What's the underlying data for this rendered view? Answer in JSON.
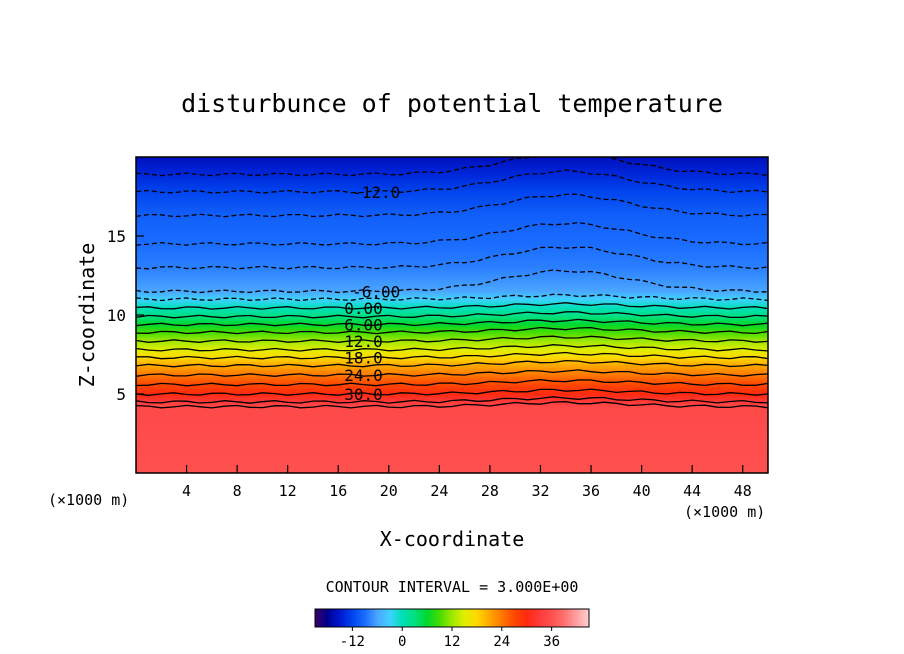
{
  "chart_data": {
    "type": "heatmap",
    "title": "disturbunce of potential temperature",
    "xlabel": "X-coordinate",
    "ylabel": "Z-coordinate",
    "x_unit_left": "(×1000 m)",
    "x_unit_right": "(×1000 m)",
    "xlim": [
      0,
      50
    ],
    "ylim": [
      0,
      20
    ],
    "x_ticks": [
      "4",
      "8",
      "12",
      "16",
      "20",
      "24",
      "28",
      "32",
      "36",
      "40",
      "44",
      "48"
    ],
    "y_ticks": [
      "5",
      "10",
      "15"
    ],
    "grid": false,
    "contour_interval_label": "CONTOUR INTERVAL = 3.000E+00",
    "colorbar": {
      "ticks": [
        "-12",
        "0",
        "12",
        "24",
        "36"
      ],
      "range": [
        -21,
        45
      ]
    },
    "contour_labels": [
      {
        "text": "-12.0",
        "value": -12,
        "x": 19,
        "z": 17.8
      },
      {
        "text": "-6.00",
        "value": -6,
        "x": 19,
        "z": 11.5
      },
      {
        "text": "0.00",
        "value": 0,
        "x": 18,
        "z": 10.45
      },
      {
        "text": "6.00",
        "value": 6,
        "x": 18,
        "z": 9.4
      },
      {
        "text": "12.0",
        "value": 12,
        "x": 18,
        "z": 8.35
      },
      {
        "text": "18.0",
        "value": 18,
        "x": 18,
        "z": 7.3
      },
      {
        "text": "24.0",
        "value": 24,
        "x": 18,
        "z": 6.2
      },
      {
        "text": "30.0",
        "value": 30,
        "x": 18,
        "z": 5.0
      }
    ],
    "layers": [
      {
        "z": 0.0,
        "value": 36
      },
      {
        "z": 4.2,
        "value": 35
      },
      {
        "z": 4.5,
        "value": 33
      },
      {
        "z": 5.0,
        "value": 30
      },
      {
        "z": 5.6,
        "value": 27
      },
      {
        "z": 6.2,
        "value": 24
      },
      {
        "z": 6.8,
        "value": 21
      },
      {
        "z": 7.3,
        "value": 18
      },
      {
        "z": 7.8,
        "value": 15
      },
      {
        "z": 8.35,
        "value": 12
      },
      {
        "z": 8.9,
        "value": 9
      },
      {
        "z": 9.4,
        "value": 6
      },
      {
        "z": 9.9,
        "value": 3
      },
      {
        "z": 10.45,
        "value": 0
      },
      {
        "z": 11.0,
        "value": -3
      },
      {
        "z": 11.5,
        "value": -6
      },
      {
        "z": 13.0,
        "value": -8
      },
      {
        "z": 14.5,
        "value": -9
      },
      {
        "z": 16.3,
        "value": -10
      },
      {
        "z": 17.8,
        "value": -12
      },
      {
        "z": 18.9,
        "value": -14
      },
      {
        "z": 20.0,
        "value": -16
      }
    ]
  }
}
